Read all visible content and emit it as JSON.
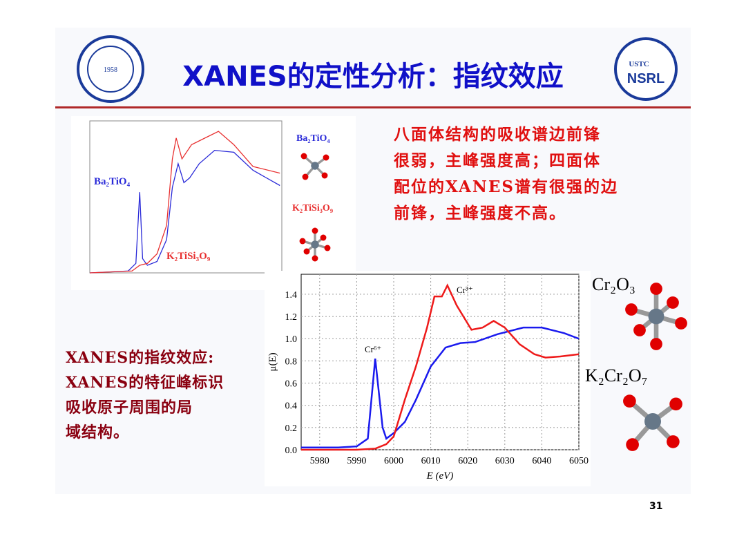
{
  "header": {
    "title": "XANES的定性分析：指纹效应",
    "logo_left_text": "1958",
    "logo_right_top": "USTC",
    "logo_right_bottom": "NSRL"
  },
  "description": [
    "八面体结构的吸收谱边前锋",
    "很弱，主峰强度高；四面体",
    "配位的XANES谱有很强的边",
    "前锋，主峰强度不高。"
  ],
  "left_text": [
    "XANES的指纹效应:",
    "XANES的特征峰标识",
    "吸收原子周围的局",
    "域结构。"
  ],
  "page_number": "31",
  "charts": [
    {
      "type": "line",
      "xlim": [
        4950,
        5050
      ],
      "ylim": [
        0,
        1.6
      ],
      "grid": true,
      "series": [
        {
          "name": "Ba₂TiO₄",
          "color": "#2a2ad8",
          "x": [
            4950,
            4970,
            4974,
            4976,
            4977.5,
            4980,
            4985,
            4990,
            4993,
            4996,
            4999,
            5002,
            5007,
            5015,
            5025,
            5035,
            5049
          ],
          "values": [
            0,
            0.02,
            0.1,
            0.85,
            0.15,
            0.08,
            0.12,
            0.35,
            0.9,
            1.15,
            0.95,
            1.0,
            1.15,
            1.29,
            1.27,
            1.08,
            0.92
          ]
        },
        {
          "name": "K₂TiSi₃O₉",
          "color": "#e83030",
          "x": [
            4950,
            4972,
            4976,
            4980,
            4985,
            4990,
            4993,
            4995,
            4998,
            5003,
            5010,
            5017,
            5025,
            5035,
            5049
          ],
          "values": [
            0,
            0.02,
            0.08,
            0.1,
            0.2,
            0.5,
            1.2,
            1.42,
            1.2,
            1.35,
            1.42,
            1.49,
            1.35,
            1.12,
            1.05
          ]
        }
      ]
    },
    {
      "type": "line",
      "xlim": [
        5975,
        6050
      ],
      "ylim": [
        0,
        1.58
      ],
      "grid": true,
      "xticks": [
        5980,
        5990,
        6000,
        6010,
        6020,
        6030,
        6040,
        6050
      ],
      "yticks": [
        {
          "value": 0,
          "label": "0.0"
        },
        0.2,
        0.4,
        0.6,
        0.8,
        {
          "value": 1,
          "label": "1.0"
        },
        1.2,
        1.4
      ],
      "xlabel": "E (eV)",
      "ylabel": "μ(E)",
      "annotations": [
        "Cr⁶⁺",
        "Cr³⁺"
      ],
      "series": [
        {
          "name": "K₂Cr₂O₇",
          "color": "#1a1aee",
          "x": [
            5975,
            5985,
            5990,
            5993,
            5995,
            5997,
            5998,
            6000,
            6003,
            6006,
            6010,
            6014,
            6018,
            6022,
            6028,
            6035,
            6040,
            6046,
            6050
          ],
          "values": [
            0.02,
            0.02,
            0.03,
            0.1,
            0.82,
            0.2,
            0.1,
            0.15,
            0.25,
            0.45,
            0.75,
            0.92,
            0.96,
            0.97,
            1.04,
            1.1,
            1.1,
            1.05,
            1.0
          ]
        },
        {
          "name": "Cr₂O₃",
          "color": "#ee1a1a",
          "x": [
            5975,
            5990,
            5995,
            5998,
            6000,
            6003,
            6006,
            6009,
            6011,
            6013,
            6014.5,
            6017,
            6021,
            6024,
            6027,
            6030,
            6034,
            6038,
            6041,
            6045,
            6050
          ],
          "values": [
            0,
            0,
            0.01,
            0.05,
            0.12,
            0.45,
            0.75,
            1.1,
            1.38,
            1.38,
            1.48,
            1.3,
            1.08,
            1.1,
            1.16,
            1.1,
            0.95,
            0.86,
            0.83,
            0.84,
            0.86
          ]
        }
      ]
    }
  ]
}
